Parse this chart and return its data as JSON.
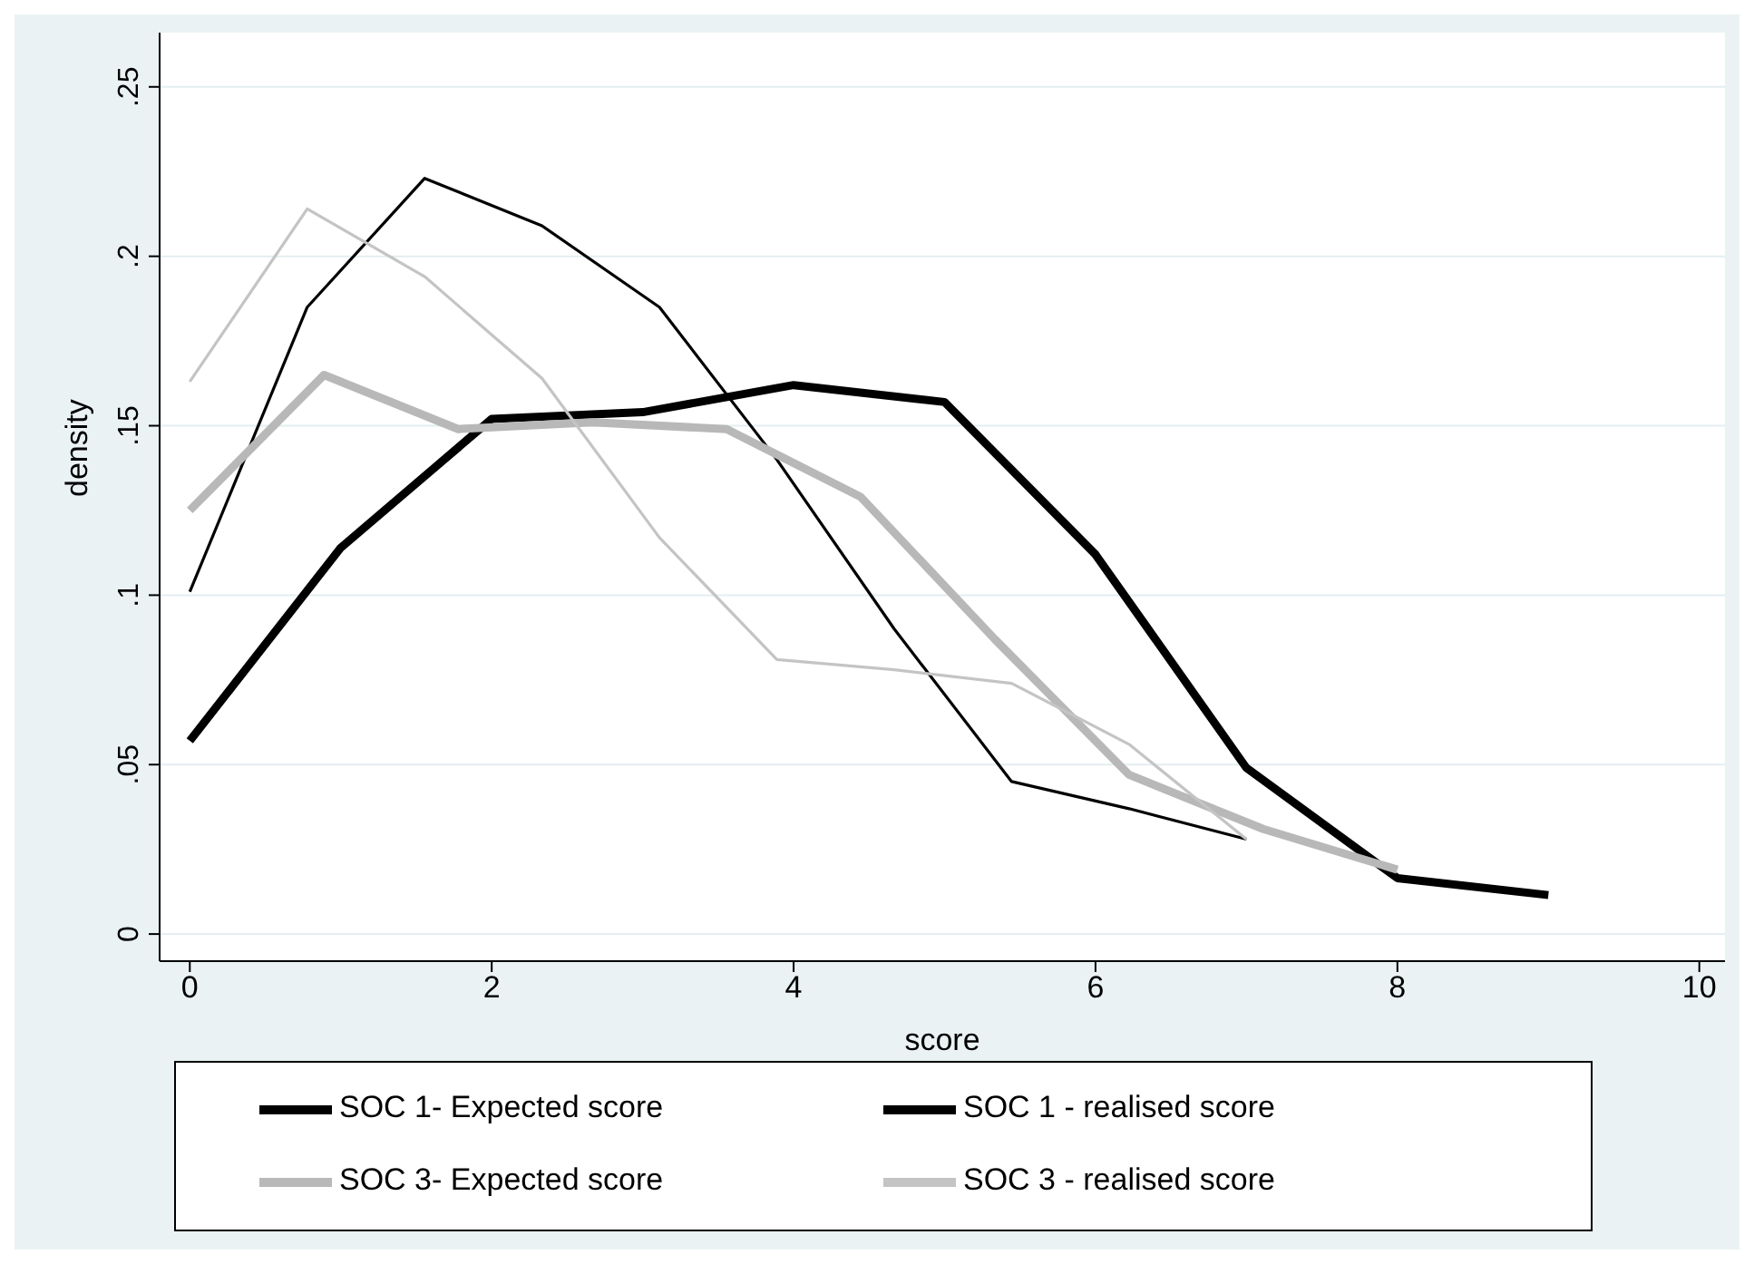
{
  "chart_data": {
    "type": "line",
    "xlabel": "score",
    "ylabel": "density",
    "xlim": [
      -0.2,
      10.17
    ],
    "xticks": [
      0,
      2,
      4,
      6,
      8,
      10
    ],
    "ylim": [
      -0.008,
      0.266
    ],
    "yticks": [
      0,
      {
        "value": 0.05,
        "label": ".05"
      },
      {
        "value": 0.1,
        "label": ".1"
      },
      {
        "value": 0.15,
        "label": ".15"
      },
      {
        "value": 0.2,
        "label": ".2"
      },
      {
        "value": 0.25,
        "label": ".25"
      }
    ],
    "grid": "y",
    "legend": "bottom",
    "marker": "none",
    "line_style": "solid",
    "series": [
      {
        "name": "SOC 1- Expected score",
        "color": "#000000",
        "x": [
          0,
          1,
          2,
          3,
          4,
          5,
          6,
          7,
          8,
          9
        ],
        "values": [
          0.057,
          0.114,
          0.152,
          0.154,
          0.162,
          0.157,
          0.112,
          0.049,
          0.0165,
          0.0115
        ]
      },
      {
        "name": "SOC 1 - realised score",
        "color": "#000000",
        "x": [
          0,
          0.778,
          1.556,
          2.333,
          3.111,
          3.889,
          4.667,
          5.444,
          6.222,
          7
        ],
        "values": [
          0.101,
          0.185,
          0.223,
          0.209,
          0.185,
          0.14,
          0.09,
          0.045,
          0.037,
          0.028
        ]
      },
      {
        "name": "SOC 3- Expected score",
        "color": "#b8b8b8",
        "x": [
          0,
          0.889,
          1.778,
          2.667,
          3.556,
          4.444,
          5.333,
          6.222,
          7.111,
          8
        ],
        "values": [
          0.125,
          0.165,
          0.149,
          0.151,
          0.149,
          0.129,
          0.087,
          0.047,
          0.031,
          0.019
        ]
      },
      {
        "name": "SOC 3 - realised score",
        "color": "#c4c4c4",
        "x": [
          0,
          0.778,
          1.556,
          2.333,
          3.111,
          3.889,
          4.667,
          5.444,
          6.222,
          7
        ],
        "values": [
          0.163,
          0.214,
          0.194,
          0.164,
          0.117,
          0.081,
          0.078,
          0.074,
          0.056,
          0.028
        ]
      }
    ]
  }
}
